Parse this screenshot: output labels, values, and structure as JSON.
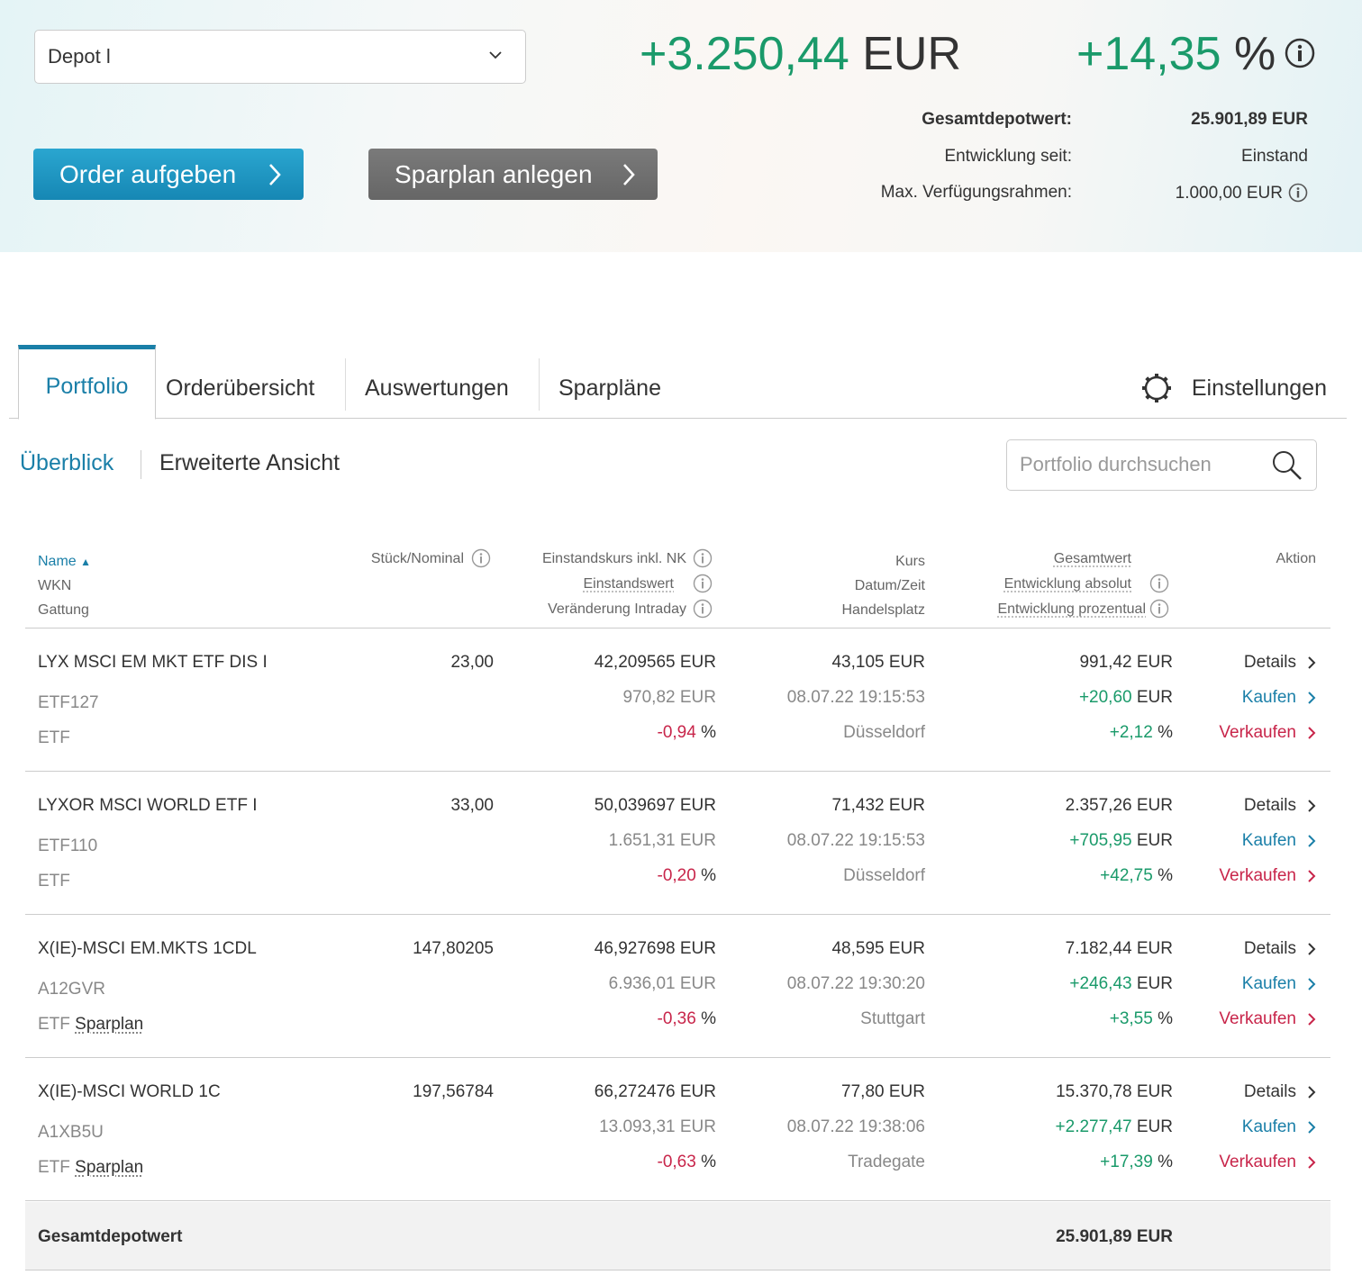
{
  "header": {
    "depot_select": "Depot l",
    "total_change_abs": "+3.250,44",
    "total_change_abs_unit": "EUR",
    "total_change_pct": "+14,35",
    "total_change_pct_unit": "%",
    "summary": [
      {
        "label": "Gesamtdepotwert:",
        "value": "25.901,89 EUR"
      },
      {
        "label": "Entwicklung seit:",
        "value": "Einstand"
      },
      {
        "label": "Max. Verfügungsrahmen:",
        "value": "1.000,00 EUR"
      }
    ],
    "order_button": "Order aufgeben",
    "sparplan_button": "Sparplan anlegen"
  },
  "tabs": [
    "Portfolio",
    "Orderübersicht",
    "Auswertungen",
    "Sparpläne"
  ],
  "settings_label": "Einstellungen",
  "subnav": {
    "overview": "Überblick",
    "extended": "Erweiterte Ansicht"
  },
  "search": {
    "placeholder": "Portfolio durchsuchen"
  },
  "columns": {
    "name": "Name",
    "wkn": "WKN",
    "gattung": "Gattung",
    "stueck": "Stück/Nominal",
    "einstandskurs": "Einstandskurs inkl. NK",
    "einstandswert": "Einstandswert",
    "intraday": "Veränderung Intraday",
    "kurs": "Kurs",
    "datum": "Datum/Zeit",
    "handelsplatz": "Handelsplatz",
    "gesamtwert": "Gesamtwert",
    "entw_abs": "Entwicklung absolut",
    "entw_pct": "Entwicklung prozentual",
    "aktion": "Aktion"
  },
  "actions": {
    "details": "Details",
    "buy": "Kaufen",
    "sell": "Verkaufen"
  },
  "rows": [
    {
      "name": "LYX MSCI EM MKT ETF DIS I",
      "wkn": "ETF127",
      "gattung": "ETF",
      "sparplan": "",
      "stueck": "23,00",
      "einstandskurs": "42,209565 EUR",
      "einstandswert": "970,82 EUR",
      "intraday": "-0,94",
      "kurs": "43,105 EUR",
      "datum": "08.07.22 19:15:53",
      "handelsplatz": "Düsseldorf",
      "gesamtwert": "991,42 EUR",
      "entw_abs": "+20,60",
      "entw_pct": "+2,12"
    },
    {
      "name": "LYXOR MSCI WORLD ETF I",
      "wkn": "ETF110",
      "gattung": "ETF",
      "sparplan": "",
      "stueck": "33,00",
      "einstandskurs": "50,039697 EUR",
      "einstandswert": "1.651,31 EUR",
      "intraday": "-0,20",
      "kurs": "71,432 EUR",
      "datum": "08.07.22 19:15:53",
      "handelsplatz": "Düsseldorf",
      "gesamtwert": "2.357,26 EUR",
      "entw_abs": "+705,95",
      "entw_pct": "+42,75"
    },
    {
      "name": "X(IE)-MSCI EM.MKTS 1CDL",
      "wkn": "A12GVR",
      "gattung": "ETF",
      "sparplan": "Sparplan",
      "stueck": "147,80205",
      "einstandskurs": "46,927698 EUR",
      "einstandswert": "6.936,01 EUR",
      "intraday": "-0,36",
      "kurs": "48,595 EUR",
      "datum": "08.07.22 19:30:20",
      "handelsplatz": "Stuttgart",
      "gesamtwert": "7.182,44 EUR",
      "entw_abs": "+246,43",
      "entw_pct": "+3,55"
    },
    {
      "name": "X(IE)-MSCI WORLD 1C",
      "wkn": "A1XB5U",
      "gattung": "ETF",
      "sparplan": "Sparplan",
      "stueck": "197,56784",
      "einstandskurs": "66,272476 EUR",
      "einstandswert": "13.093,31 EUR",
      "intraday": "-0,63",
      "kurs": "77,80 EUR",
      "datum": "08.07.22 19:38:06",
      "handelsplatz": "Tradegate",
      "gesamtwert": "15.370,78 EUR",
      "entw_abs": "+2.277,47",
      "entw_pct": "+17,39"
    }
  ],
  "units": {
    "eur": "EUR",
    "pct": "%"
  },
  "footer": {
    "label": "Gesamtdepotwert",
    "value": "25.901,89 EUR"
  },
  "colors": {
    "accent": "#1a7fa8",
    "positive": "#1a9a6a",
    "negative": "#c8254a"
  }
}
